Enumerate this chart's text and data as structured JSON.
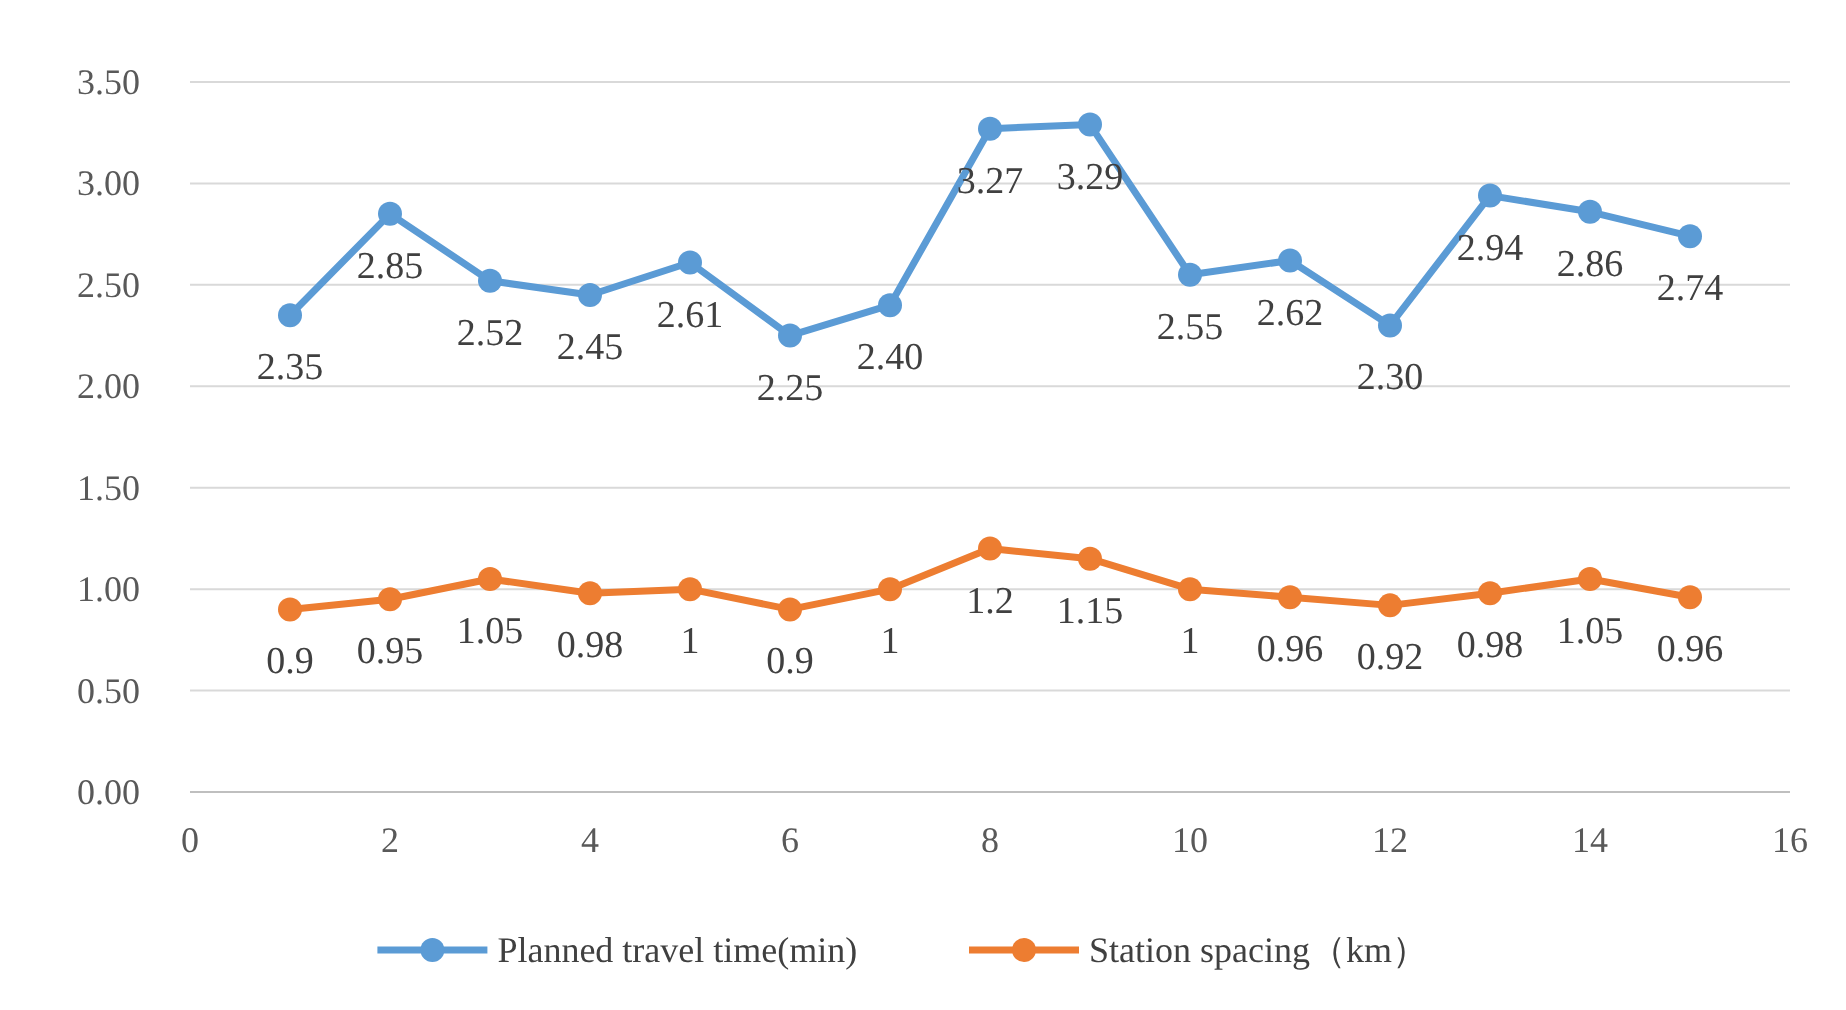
{
  "chart_data": {
    "type": "line",
    "x": [
      1,
      2,
      3,
      4,
      5,
      6,
      7,
      8,
      9,
      10,
      11,
      12,
      13,
      14,
      15
    ],
    "series": [
      {
        "name": "Planned travel time(min)",
        "color": "#5b9bd5",
        "values": [
          2.35,
          2.85,
          2.52,
          2.45,
          2.61,
          2.25,
          2.4,
          3.27,
          3.29,
          2.55,
          2.62,
          2.3,
          2.94,
          2.86,
          2.74
        ],
        "value_labels": [
          "2.35",
          "2.85",
          "2.52",
          "2.45",
          "2.61",
          "2.25",
          "2.40",
          "3.27",
          "3.29",
          "2.55",
          "2.62",
          "2.30",
          "2.94",
          "2.86",
          "2.74"
        ]
      },
      {
        "name": "Station spacing（km）",
        "color": "#ed7d31",
        "values": [
          0.9,
          0.95,
          1.05,
          0.98,
          1,
          0.9,
          1,
          1.2,
          1.15,
          1,
          0.96,
          0.92,
          0.98,
          1.05,
          0.96
        ],
        "value_labels": [
          "0.9",
          "0.95",
          "1.05",
          "0.98",
          "1",
          "0.9",
          "1",
          "1.2",
          "1.15",
          "1",
          "0.96",
          "0.92",
          "0.98",
          "1.05",
          "0.96"
        ]
      }
    ],
    "xlim": [
      0,
      16
    ],
    "xticks": [
      0,
      2,
      4,
      6,
      8,
      10,
      12,
      14,
      16
    ],
    "ylim": [
      0,
      3.5
    ],
    "yticks": [
      {
        "value": 0,
        "label": "0.00"
      },
      {
        "value": 0.5,
        "label": "0.50"
      },
      {
        "value": 1,
        "label": "1.00"
      },
      {
        "value": 1.5,
        "label": "1.50"
      },
      {
        "value": 2,
        "label": "2.00"
      },
      {
        "value": 2.5,
        "label": "2.50"
      },
      {
        "value": 3,
        "label": "3.00"
      },
      {
        "value": 3.5,
        "label": "3.50"
      }
    ],
    "grid": "y",
    "legend": "bottom",
    "marker": "circle",
    "line_style": "solid"
  }
}
